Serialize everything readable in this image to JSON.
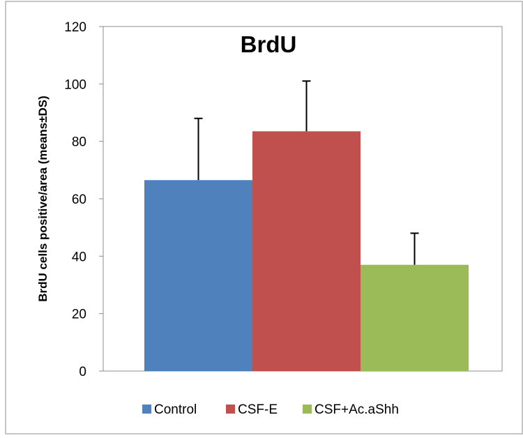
{
  "chart_data": {
    "type": "bar",
    "title": "BrdU",
    "xlabel": "",
    "ylabel": "BrdU cells positive/area (means±DS)",
    "ylim": [
      0,
      120
    ],
    "yticks": [
      "0",
      "20",
      "40",
      "60",
      "80",
      "100",
      "120"
    ],
    "grid": false,
    "legend_position": "bottom",
    "series": [
      {
        "name": "Control",
        "value": 66.5,
        "error": 21.5,
        "color": "#4f81bd"
      },
      {
        "name": "CSF-E",
        "value": 83.5,
        "error": 17.5,
        "color": "#c0504d"
      },
      {
        "name": "CSF+Ac.aShh",
        "value": 37,
        "error": 11,
        "color": "#9bbb59"
      }
    ]
  }
}
